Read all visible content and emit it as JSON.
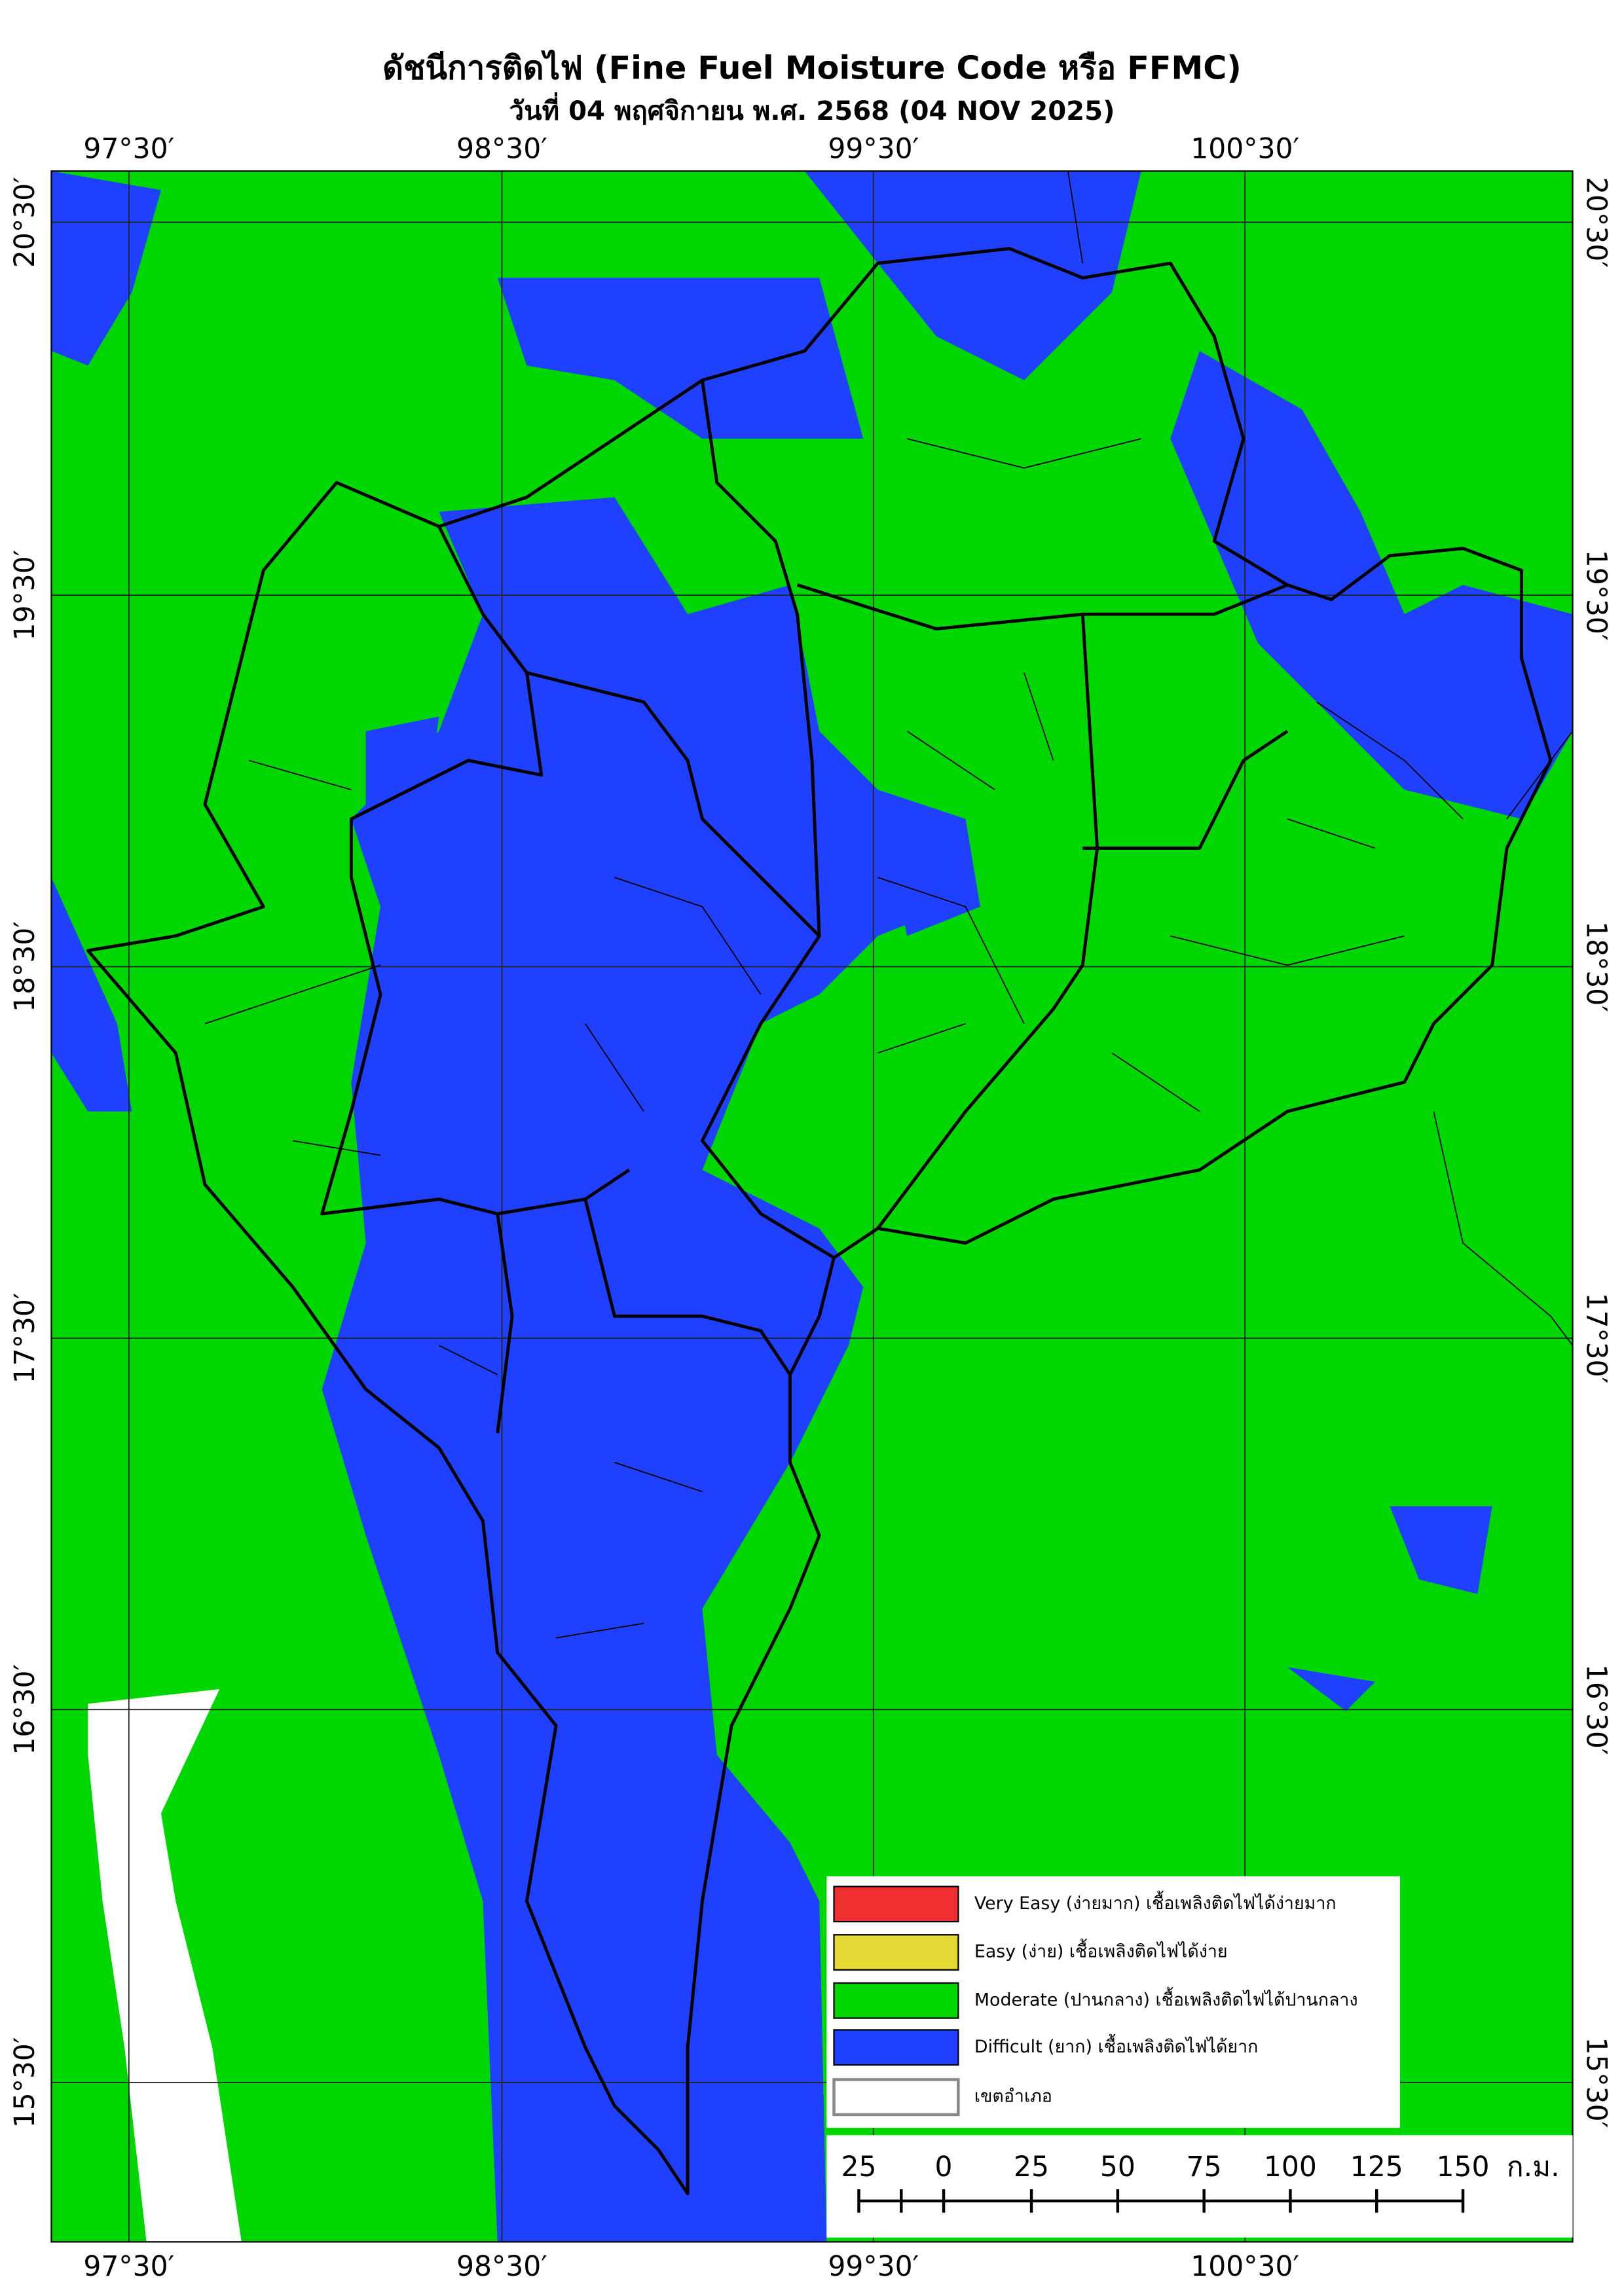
{
  "header": {
    "title": "ดัชนีการติดไฟ (Fine Fuel Moisture Code หรือ FFMC)",
    "subtitle": "วันที่ 04 พฤศจิกายน พ.ศ. 2568 (04 NOV 2025)"
  },
  "grid": {
    "lon_labels": [
      "97°30′",
      "98°30′",
      "99°30′",
      "100°30′"
    ],
    "lat_labels": [
      "20°30′",
      "19°30′",
      "18°30′",
      "17°30′",
      "16°30′",
      "15°30′"
    ]
  },
  "legend": {
    "items": [
      {
        "label": "Very Easy (ง่ายมาก) เชื้อเพลิงติดไฟได้ง่ายมาก",
        "color": "#f03030"
      },
      {
        "label": "Easy (ง่าย) เชื้อเพลิงติดไฟได้ง่าย",
        "color": "#e6d835"
      },
      {
        "label": "Moderate (ปานกลาง) เชื้อเพลิงติดไฟได้ปานกลาง",
        "color": "#00d600"
      },
      {
        "label": "Difficult (ยาก) เชื้อเพลิงติดไฟได้ยาก",
        "color": "#2040ff"
      },
      {
        "label": "เขตอำเภอ",
        "color": "#ffffff"
      }
    ]
  },
  "scale_bar": {
    "labels": [
      "25",
      "0",
      "25",
      "50",
      "75",
      "100",
      "125",
      "150"
    ],
    "unit": "ก.ม."
  }
}
